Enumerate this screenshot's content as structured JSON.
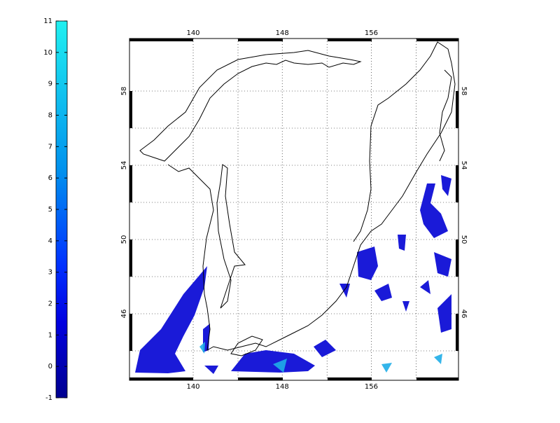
{
  "colorbar": {
    "lim": [
      -1,
      11
    ],
    "ticks": [
      -1,
      0,
      1,
      2,
      3,
      4,
      5,
      6,
      7,
      8,
      9,
      10,
      11
    ]
  },
  "map": {
    "lon_ticks": [
      140,
      148,
      156
    ],
    "lat_ticks": [
      58,
      54,
      50,
      46
    ]
  }
}
